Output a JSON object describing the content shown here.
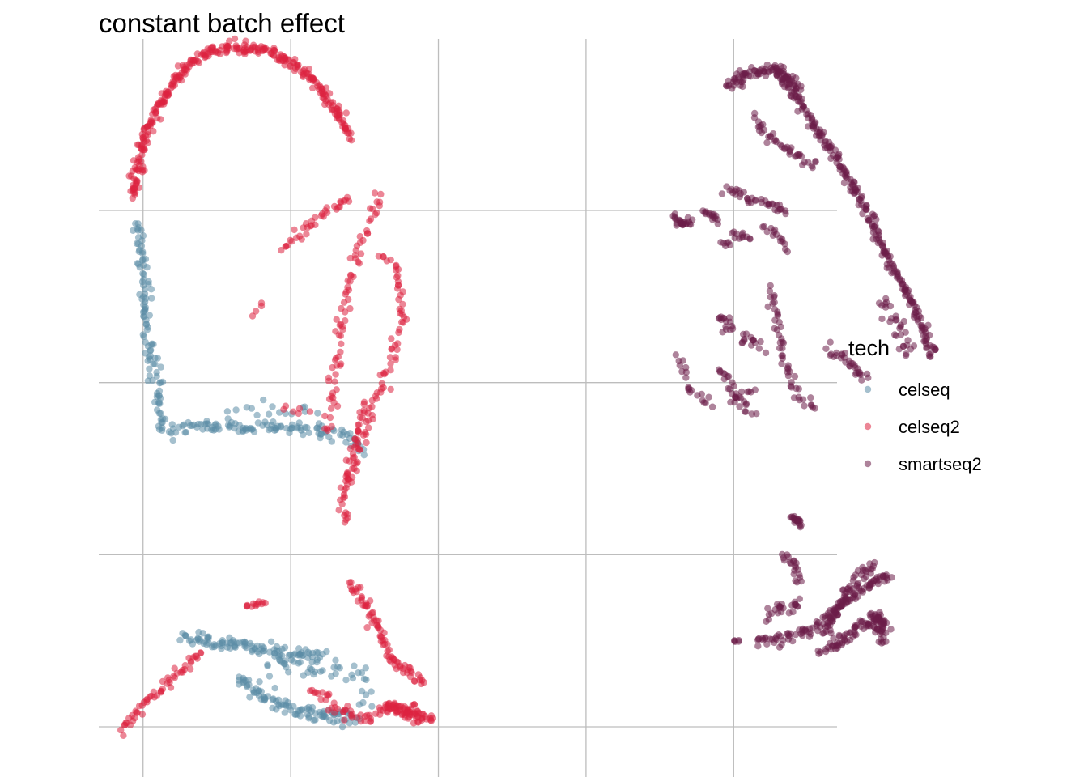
{
  "chart_data": {
    "type": "scatter",
    "title": "constant batch effect",
    "xlabel": "",
    "ylabel": "",
    "axes_labels_shown": false,
    "grid": true,
    "legend": {
      "title": "tech",
      "placement": "right",
      "entries": [
        "celseq",
        "celseq2",
        "smartseq2"
      ]
    },
    "colors": {
      "celseq": "#5b8ca6",
      "celseq2": "#dc2340",
      "smartseq2": "#6b1d48"
    },
    "series": [
      {
        "name": "celseq",
        "clusters": [
          {
            "path": [
              [
                0.55,
                2.93
              ],
              [
                0.6,
                2.7
              ],
              [
                0.62,
                2.4
              ],
              [
                0.65,
                2.15
              ],
              [
                0.7,
                1.95
              ],
              [
                0.72,
                1.8
              ],
              [
                0.75,
                1.73
              ],
              [
                1.2,
                1.75
              ],
              [
                1.6,
                1.73
              ],
              [
                1.95,
                1.7
              ],
              [
                2.1,
                1.62
              ]
            ],
            "count": 220,
            "spread": 0.035
          },
          {
            "path": [
              [
                1.2,
                1.82
              ],
              [
                1.5,
                1.83
              ],
              [
                1.75,
                1.82
              ]
            ],
            "count": 15,
            "spread": 0.05
          },
          {
            "path": [
              [
                0.88,
                0.52
              ],
              [
                1.0,
                0.5
              ],
              [
                1.3,
                0.47
              ],
              [
                1.6,
                0.43
              ],
              [
                1.82,
                0.4
              ]
            ],
            "count": 110,
            "spread": 0.035
          },
          {
            "path": [
              [
                1.25,
                0.3
              ],
              [
                1.4,
                0.18
              ],
              [
                1.6,
                0.1
              ],
              [
                1.85,
                0.06
              ],
              [
                2.05,
                0.05
              ]
            ],
            "count": 100,
            "spread": 0.035
          },
          {
            "path": [
              [
                1.45,
                0.34
              ],
              [
                1.75,
                0.35
              ],
              [
                1.95,
                0.33
              ],
              [
                2.1,
                0.27
              ],
              [
                2.1,
                0.12
              ]
            ],
            "count": 40,
            "spread": 0.05
          }
        ]
      },
      {
        "name": "celseq2",
        "clusters": [
          {
            "path": [
              [
                0.53,
                3.07
              ],
              [
                0.58,
                3.35
              ],
              [
                0.7,
                3.6
              ],
              [
                0.85,
                3.8
              ],
              [
                1.0,
                3.9
              ],
              [
                1.2,
                3.95
              ],
              [
                1.45,
                3.93
              ],
              [
                1.7,
                3.8
              ],
              [
                1.9,
                3.6
              ],
              [
                2.0,
                3.42
              ]
            ],
            "count": 330,
            "spread": 0.028
          },
          {
            "path": [
              [
                1.55,
                2.78
              ],
              [
                1.7,
                2.9
              ],
              [
                1.85,
                3.0
              ],
              [
                2.0,
                3.08
              ]
            ],
            "count": 35,
            "spread": 0.03
          },
          {
            "path": [
              [
                1.85,
                1.72
              ],
              [
                1.9,
                2.05
              ],
              [
                1.95,
                2.4
              ],
              [
                2.05,
                2.75
              ],
              [
                2.2,
                3.1
              ]
            ],
            "count": 75,
            "spread": 0.03
          },
          {
            "path": [
              [
                2.0,
                1.4
              ],
              [
                2.05,
                1.6
              ],
              [
                2.15,
                1.8
              ],
              [
                2.25,
                2.05
              ],
              [
                2.35,
                2.35
              ],
              [
                2.32,
                2.65
              ],
              [
                2.2,
                2.75
              ]
            ],
            "count": 80,
            "spread": 0.03
          },
          {
            "path": [
              [
                1.55,
                1.85
              ],
              [
                1.7,
                1.82
              ]
            ],
            "count": 6,
            "spread": 0.04
          },
          {
            "path": [
              [
                0.45,
                -0.03
              ],
              [
                0.6,
                0.12
              ],
              [
                0.8,
                0.28
              ],
              [
                1.0,
                0.43
              ]
            ],
            "count": 55,
            "spread": 0.025
          },
          {
            "path": [
              [
                2.1,
                1.88
              ],
              [
                2.05,
                1.7
              ],
              [
                2.0,
                1.5
              ],
              [
                1.95,
                1.3
              ],
              [
                1.98,
                1.18
              ]
            ],
            "count": 45,
            "spread": 0.025
          },
          {
            "path": [
              [
                2.0,
                0.83
              ],
              [
                2.1,
                0.72
              ],
              [
                2.2,
                0.55
              ],
              [
                2.3,
                0.38
              ],
              [
                2.5,
                0.25
              ]
            ],
            "count": 80,
            "spread": 0.025
          },
          {
            "path": [
              [
                1.3,
                0.7
              ],
              [
                1.42,
                0.73
              ]
            ],
            "count": 12,
            "spread": 0.02
          },
          {
            "path": [
              [
                1.75,
                0.22
              ],
              [
                1.9,
                0.1
              ],
              [
                2.1,
                0.05
              ],
              [
                2.3,
                0.1
              ],
              [
                2.45,
                0.1
              ]
            ],
            "count": 60,
            "spread": 0.035
          },
          {
            "path": [
              [
                2.25,
                0.13
              ],
              [
                2.4,
                0.08
              ],
              [
                2.55,
                0.05
              ]
            ],
            "count": 60,
            "spread": 0.03
          },
          {
            "path": [
              [
                1.35,
                2.4
              ],
              [
                1.39,
                2.47
              ]
            ],
            "count": 4,
            "spread": 0.02
          }
        ]
      },
      {
        "name": "smartseq2",
        "clusters": [
          {
            "path": [
              [
                4.55,
                3.72
              ],
              [
                4.7,
                3.8
              ],
              [
                4.9,
                3.82
              ],
              [
                5.05,
                3.7
              ]
            ],
            "count": 90,
            "spread": 0.03
          },
          {
            "path": [
              [
                4.9,
                3.82
              ],
              [
                5.1,
                3.55
              ],
              [
                5.3,
                3.3
              ],
              [
                5.5,
                3.0
              ],
              [
                5.65,
                2.7
              ],
              [
                5.82,
                2.45
              ],
              [
                5.95,
                2.15
              ]
            ],
            "count": 260,
            "spread": 0.025
          },
          {
            "path": [
              [
                4.75,
                3.55
              ],
              [
                4.85,
                3.42
              ],
              [
                5.0,
                3.35
              ],
              [
                5.15,
                3.25
              ]
            ],
            "count": 40,
            "spread": 0.03
          },
          {
            "path": [
              [
                5.6,
                2.5
              ],
              [
                5.7,
                2.3
              ],
              [
                5.8,
                2.15
              ]
            ],
            "count": 30,
            "spread": 0.04
          },
          {
            "path": [
              [
                5.25,
                2.2
              ],
              [
                5.4,
                2.1
              ],
              [
                5.5,
                2.02
              ]
            ],
            "count": 30,
            "spread": 0.025
          },
          {
            "path": [
              [
                4.2,
                2.95
              ],
              [
                4.3,
                2.92
              ]
            ],
            "count": 25,
            "spread": 0.025
          },
          {
            "path": [
              [
                4.4,
                3.0
              ],
              [
                4.5,
                2.95
              ]
            ],
            "count": 15,
            "spread": 0.02
          },
          {
            "path": [
              [
                4.55,
                3.12
              ],
              [
                4.65,
                3.08
              ],
              [
                4.75,
                3.05
              ]
            ],
            "count": 20,
            "spread": 0.02
          },
          {
            "path": [
              [
                4.8,
                3.05
              ],
              [
                4.95,
                3.0
              ]
            ],
            "count": 18,
            "spread": 0.02
          },
          {
            "path": [
              [
                4.6,
                2.88
              ],
              [
                4.7,
                2.83
              ]
            ],
            "count": 12,
            "spread": 0.02
          },
          {
            "path": [
              [
                4.8,
                2.9
              ],
              [
                4.9,
                2.85
              ],
              [
                4.97,
                2.78
              ]
            ],
            "count": 15,
            "spread": 0.02
          },
          {
            "path": [
              [
                4.52,
                2.82
              ],
              [
                4.58,
                2.8
              ]
            ],
            "count": 6,
            "spread": 0.015
          },
          {
            "path": [
              [
                4.2,
                2.15
              ],
              [
                4.3,
                1.98
              ],
              [
                4.45,
                1.85
              ]
            ],
            "count": 20,
            "spread": 0.025
          },
          {
            "path": [
              [
                4.5,
                2.1
              ],
              [
                4.6,
                1.95
              ],
              [
                4.7,
                1.8
              ]
            ],
            "count": 25,
            "spread": 0.03
          },
          {
            "path": [
              [
                4.5,
                2.4
              ],
              [
                4.6,
                2.3
              ],
              [
                4.7,
                2.25
              ],
              [
                4.8,
                2.2
              ]
            ],
            "count": 30,
            "spread": 0.04
          },
          {
            "path": [
              [
                4.85,
                2.55
              ],
              [
                4.9,
                2.35
              ],
              [
                4.95,
                2.1
              ],
              [
                5.05,
                1.9
              ],
              [
                5.15,
                1.85
              ]
            ],
            "count": 50,
            "spread": 0.025
          },
          {
            "path": [
              [
                4.6,
                1.9
              ],
              [
                4.72,
                1.95
              ]
            ],
            "count": 10,
            "spread": 0.03
          },
          {
            "path": [
              [
                5.0,
                1.22
              ],
              [
                5.05,
                1.18
              ]
            ],
            "count": 20,
            "spread": 0.015
          },
          {
            "path": [
              [
                4.95,
                1.0
              ],
              [
                5.0,
                0.93
              ],
              [
                5.05,
                0.85
              ]
            ],
            "count": 20,
            "spread": 0.03
          },
          {
            "path": [
              [
                4.75,
                0.5
              ],
              [
                4.9,
                0.5
              ],
              [
                5.1,
                0.55
              ],
              [
                5.3,
                0.68
              ],
              [
                5.4,
                0.82
              ],
              [
                5.55,
                0.95
              ]
            ],
            "count": 100,
            "spread": 0.03
          },
          {
            "path": [
              [
                4.83,
                0.65
              ],
              [
                4.95,
                0.7
              ],
              [
                5.05,
                0.72
              ]
            ],
            "count": 25,
            "spread": 0.03
          },
          {
            "path": [
              [
                5.22,
                0.55
              ],
              [
                5.3,
                0.68
              ],
              [
                5.45,
                0.8
              ],
              [
                5.65,
                0.88
              ]
            ],
            "count": 80,
            "spread": 0.03
          },
          {
            "path": [
              [
                5.2,
                0.45
              ],
              [
                5.3,
                0.48
              ],
              [
                5.4,
                0.55
              ],
              [
                5.5,
                0.6
              ],
              [
                5.6,
                0.6
              ],
              [
                5.6,
                0.48
              ]
            ],
            "count": 80,
            "spread": 0.035
          },
          {
            "path": [
              [
                5.55,
                0.65
              ],
              [
                5.62,
                0.6
              ]
            ],
            "count": 30,
            "spread": 0.035
          },
          {
            "path": [
              [
                4.6,
                0.5
              ],
              [
                4.63,
                0.5
              ]
            ],
            "count": 5,
            "spread": 0.01
          }
        ]
      }
    ],
    "xlim": [
      0.3,
      5.3
    ],
    "ylim": [
      0.7,
      3.85
    ],
    "x_gridlines": [
      0.6,
      1.6,
      2.6,
      3.6,
      4.6
    ],
    "y_gridlines": [
      0.0,
      1.0,
      2.0,
      3.0
    ]
  }
}
